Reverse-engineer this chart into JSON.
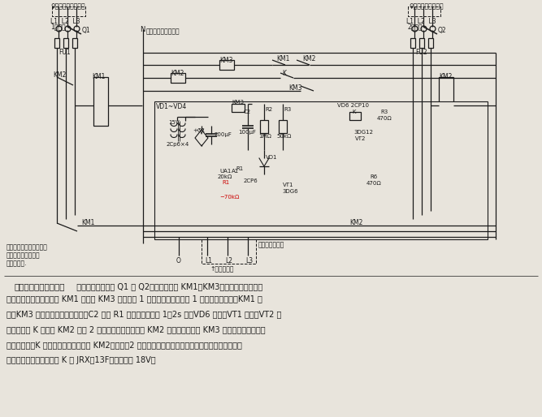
{
  "bg_color": "#e8e4dc",
  "text_color": "#1a1a1a",
  "line_color": "#1a1a1a",
  "red_color": "#cc0000",
  "figsize": [
    6.67,
    5.14
  ],
  "dpi": 100,
  "desc_title": "双路三相电源自投电路",
  "desc_body1": "电路工作时，合上 Q1 和 Q2，交流接触器 KM1、KM3同时得电，分别接通",
  "desc_body2": "用电设备和延时电路。而 KM1 又断开 KM3 电源，使 1 号电源正常供电。若 1 号电源因故停电，KM1 失",
  "desc_body3": "电，KM3 得电，将延时电路接通，C2 通过 R1 充电，延时开始 1～2s 后，VD6 导通，VT1 截止，VT2 导",
  "desc_body4": "通，继电器 K 得电使 KM2 接通 2 号电源进行供电。同时 KM2 的常闭点又断开 KM3 电源，使之切断晶体",
  "desc_body5": "管延时电路，K 的触点可时断开。但因 KM2已自锁，2 号电源仍正常供电。本电路适用于三相四线制低压",
  "desc_body6": "供电系统中。图中继电器 K 为 JRX－13F，工作电压 18V。"
}
